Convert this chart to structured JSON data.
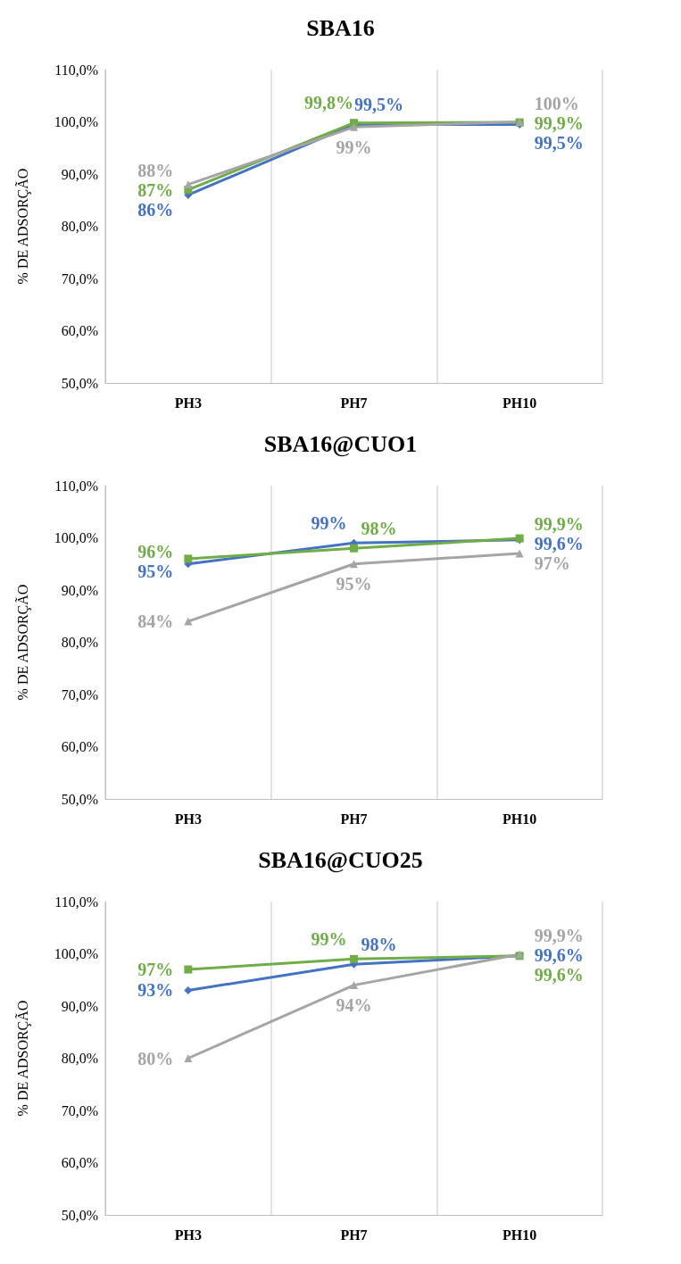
{
  "chart_data": [
    {
      "type": "line",
      "title": "SBA16",
      "ylabel": "% DE ADSORÇÃO",
      "categories": [
        "PH3",
        "PH7",
        "PH10"
      ],
      "ylim": [
        50,
        110
      ],
      "yticks": [
        {
          "value": 50,
          "label": "50,0%"
        },
        {
          "value": 60,
          "label": "60,0%"
        },
        {
          "value": 70,
          "label": "70,0%"
        },
        {
          "value": 80,
          "label": "80,0%"
        },
        {
          "value": 90,
          "label": "90,0%"
        },
        {
          "value": 100,
          "label": "100,0%"
        },
        {
          "value": 110,
          "label": "110,0%"
        }
      ],
      "grid": "x",
      "series": [
        {
          "color": "#4472c4",
          "marker": "diamond",
          "values": [
            86,
            99.5,
            99.5
          ],
          "value_labels": [
            "86%",
            "99,5%",
            "99,5%"
          ]
        },
        {
          "color": "#70ad47",
          "marker": "square",
          "values": [
            87,
            99.8,
            99.9
          ],
          "value_labels": [
            "87%",
            "99,8%",
            "99,9%"
          ]
        },
        {
          "color": "#a5a5a5",
          "marker": "triangle",
          "values": [
            88,
            99,
            100
          ],
          "value_labels": [
            "88%",
            "99%",
            "100%"
          ]
        }
      ]
    },
    {
      "type": "line",
      "title": "SBA16@CUO1",
      "ylabel": "% DE ADSORÇÃO",
      "categories": [
        "PH3",
        "PH7",
        "PH10"
      ],
      "ylim": [
        50,
        110
      ],
      "yticks": [
        {
          "value": 50,
          "label": "50,0%"
        },
        {
          "value": 60,
          "label": "60,0%"
        },
        {
          "value": 70,
          "label": "70,0%"
        },
        {
          "value": 80,
          "label": "80,0%"
        },
        {
          "value": 90,
          "label": "90,0%"
        },
        {
          "value": 100,
          "label": "100,0%"
        },
        {
          "value": 110,
          "label": "110,0%"
        }
      ],
      "grid": "x",
      "series": [
        {
          "color": "#4472c4",
          "marker": "diamond",
          "values": [
            95,
            99,
            99.6
          ],
          "value_labels": [
            "95%",
            "99%",
            "99,6%"
          ]
        },
        {
          "color": "#70ad47",
          "marker": "square",
          "values": [
            96,
            98,
            99.9
          ],
          "value_labels": [
            "96%",
            "98%",
            "99,9%"
          ]
        },
        {
          "color": "#a5a5a5",
          "marker": "triangle",
          "values": [
            84,
            95,
            97
          ],
          "value_labels": [
            "84%",
            "95%",
            "97%"
          ]
        }
      ]
    },
    {
      "type": "line",
      "title": "SBA16@CUO25",
      "ylabel": "% DE ADSORÇÃO",
      "categories": [
        "PH3",
        "PH7",
        "PH10"
      ],
      "ylim": [
        50,
        110
      ],
      "yticks": [
        {
          "value": 50,
          "label": "50,0%"
        },
        {
          "value": 60,
          "label": "60,0%"
        },
        {
          "value": 70,
          "label": "70,0%"
        },
        {
          "value": 80,
          "label": "80,0%"
        },
        {
          "value": 90,
          "label": "90,0%"
        },
        {
          "value": 100,
          "label": "100,0%"
        },
        {
          "value": 110,
          "label": "110,0%"
        }
      ],
      "grid": "x",
      "series": [
        {
          "color": "#4472c4",
          "marker": "diamond",
          "values": [
            93,
            98,
            99.6
          ],
          "value_labels": [
            "93%",
            "98%",
            "99,6%"
          ]
        },
        {
          "color": "#70ad47",
          "marker": "square",
          "values": [
            97,
            99,
            99.6
          ],
          "value_labels": [
            "97%",
            "99%",
            "99,6%"
          ]
        },
        {
          "color": "#a5a5a5",
          "marker": "triangle",
          "values": [
            80,
            94,
            99.9
          ],
          "value_labels": [
            "80%",
            "94%",
            "99,9%"
          ]
        }
      ]
    }
  ]
}
